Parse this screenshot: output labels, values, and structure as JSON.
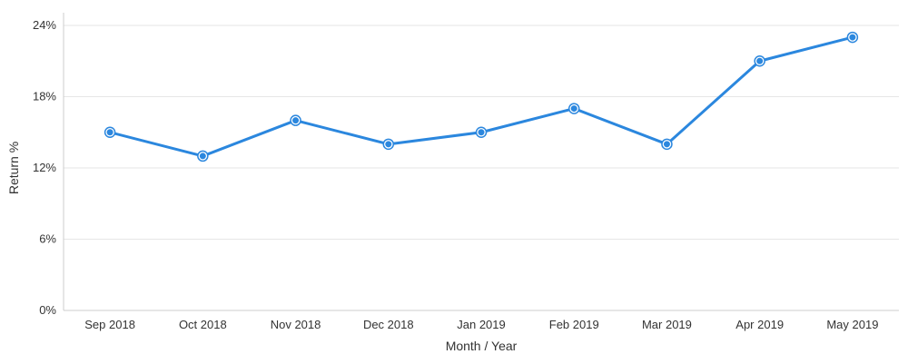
{
  "chart_data": {
    "type": "line",
    "categories": [
      "Sep 2018",
      "Oct 2018",
      "Nov 2018",
      "Dec 2018",
      "Jan 2019",
      "Feb 2019",
      "Mar 2019",
      "Apr 2019",
      "May 2019"
    ],
    "series": [
      {
        "values": [
          15,
          13,
          16,
          14,
          15,
          17,
          14,
          21,
          23
        ],
        "color": "#2b87de"
      }
    ],
    "xlabel": "Month / Year",
    "ylabel": "Return %",
    "ylim": [
      0,
      24
    ],
    "yticks": [
      "0%",
      "6%",
      "12%",
      "18%",
      "24%"
    ],
    "ytick_values": [
      0,
      6,
      12,
      18,
      24
    ],
    "grid": true,
    "legend": "none"
  }
}
